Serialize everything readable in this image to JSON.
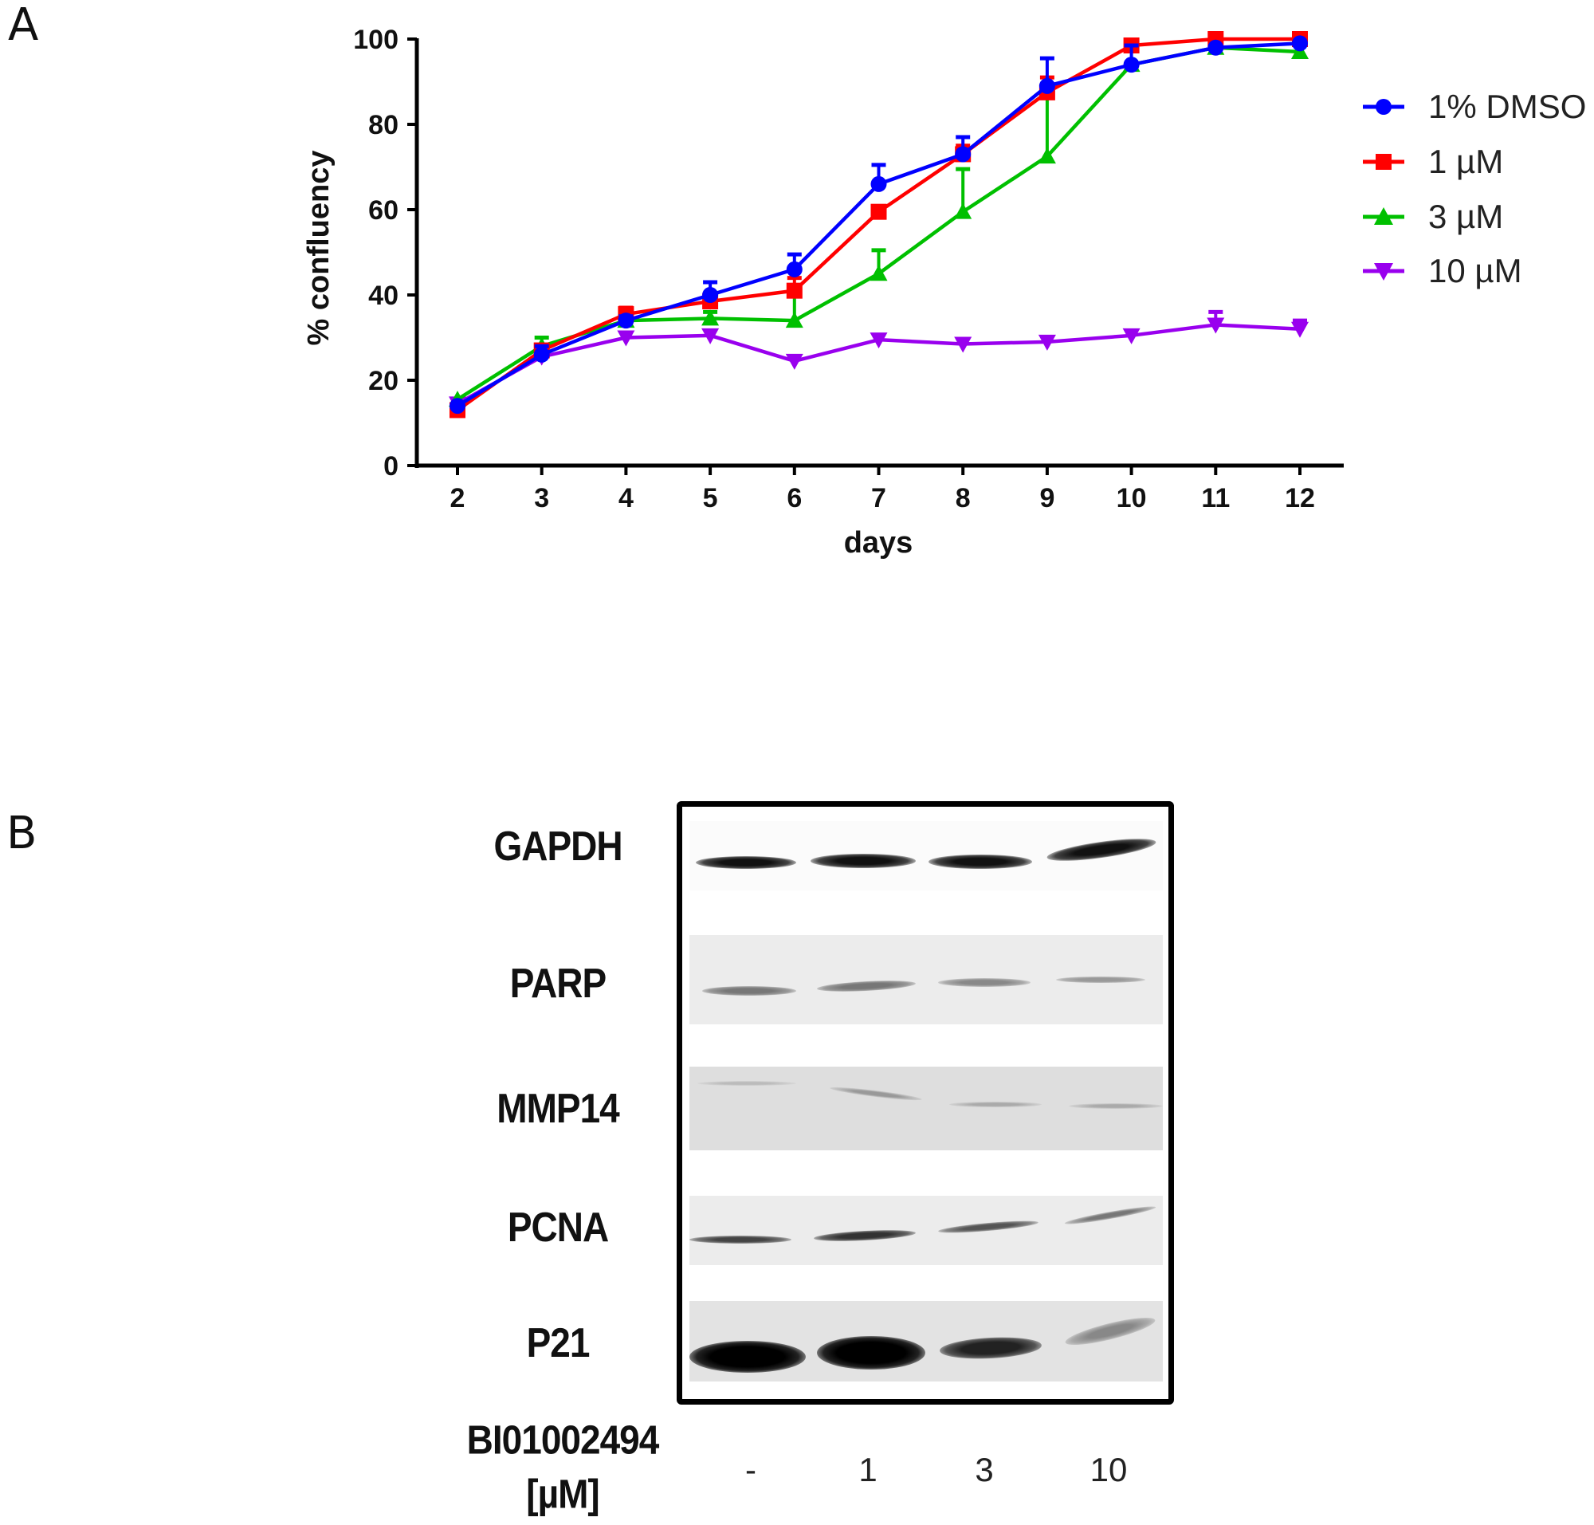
{
  "panels": {
    "a_label": "A",
    "b_label": "B"
  },
  "chart_data": {
    "type": "line",
    "title": "",
    "xlabel": "days",
    "ylabel": "% confluency",
    "x": [
      2,
      3,
      4,
      5,
      6,
      7,
      8,
      9,
      10,
      11,
      12
    ],
    "xticks": [
      "2",
      "3",
      "4",
      "5",
      "6",
      "7",
      "8",
      "9",
      "10",
      "11",
      "12"
    ],
    "yticks": [
      "0",
      "20",
      "40",
      "60",
      "80",
      "100"
    ],
    "ylim": [
      0,
      100
    ],
    "xlim": [
      1.5,
      12.6
    ],
    "grid": false,
    "legend_position": "right",
    "series": [
      {
        "name": "1% DMSO",
        "color": "#0000ff",
        "marker": "circle",
        "values": [
          14,
          26,
          34,
          40,
          46,
          66,
          73,
          89,
          94,
          98,
          99
        ],
        "error_upper": [
          null,
          28,
          35,
          43,
          49.5,
          70.5,
          77,
          95.5,
          98.5,
          null,
          null
        ]
      },
      {
        "name": "1 µM",
        "color": "#ff0000",
        "marker": "square",
        "values": [
          13,
          27,
          35.5,
          38.5,
          41,
          59.5,
          73,
          87.5,
          98.5,
          100,
          100
        ],
        "error_upper": [
          null,
          null,
          37,
          null,
          44,
          null,
          75,
          91,
          null,
          null,
          null
        ]
      },
      {
        "name": "3 µM",
        "color": "#00c000",
        "marker": "triangle-up",
        "values": [
          15.5,
          28,
          34,
          34.5,
          34,
          45,
          59.5,
          72.5,
          94,
          98,
          97
        ],
        "error_upper": [
          null,
          30,
          null,
          36,
          40,
          50.5,
          69.5,
          86.5,
          null,
          null,
          null
        ]
      },
      {
        "name": "10 µM",
        "color": "#9900ee",
        "marker": "triangle-down",
        "values": [
          14.5,
          25.5,
          30,
          30.5,
          24.5,
          29.5,
          28.5,
          29,
          30.5,
          33,
          32
        ],
        "error_upper": [
          null,
          null,
          null,
          null,
          null,
          null,
          null,
          null,
          null,
          36,
          34
        ]
      }
    ]
  },
  "western_blot": {
    "proteins": [
      "GAPDH",
      "PARP",
      "MMP14",
      "PCNA",
      "P21"
    ],
    "compound_label": "BI01002494",
    "unit_label": "[µM]",
    "lanes": [
      "-",
      "1",
      "3",
      "10"
    ],
    "relative_band_intensity": {
      "GAPDH": [
        0.9,
        0.9,
        0.9,
        0.9
      ],
      "PARP": [
        0.45,
        0.45,
        0.4,
        0.3
      ],
      "MMP14": [
        0.1,
        0.25,
        0.2,
        0.2
      ],
      "PCNA": [
        0.55,
        0.65,
        0.5,
        0.35
      ],
      "P21": [
        1.0,
        1.0,
        0.7,
        0.3
      ]
    }
  }
}
